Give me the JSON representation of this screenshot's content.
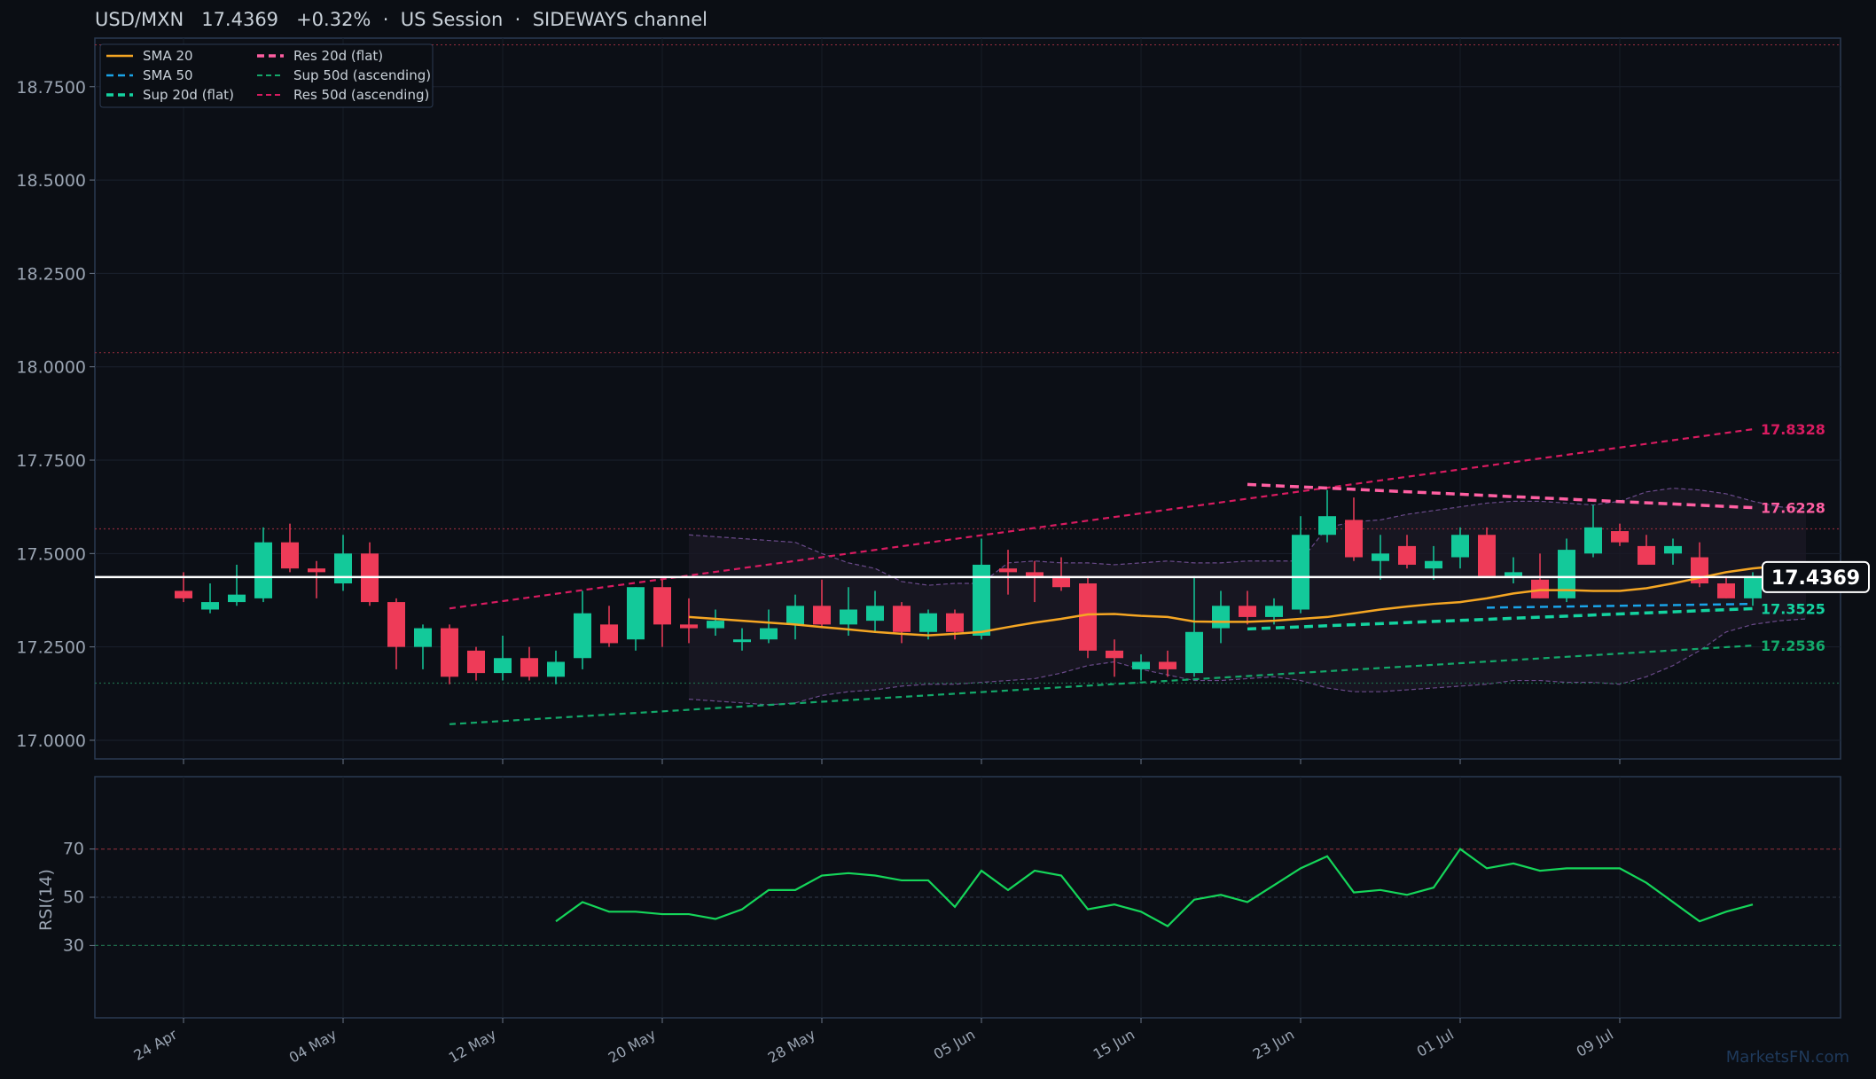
{
  "header": {
    "symbol": "USD/MXN",
    "price": "17.4369",
    "change": "+0.32%",
    "session": "US Session",
    "regime": "SIDEWAYS channel",
    "separator": "·"
  },
  "watermark": "MarketsFN.com",
  "colors": {
    "background": "#0b0e14",
    "up": "#13c99a",
    "down": "#ee3b58",
    "sma20": "#f5a623",
    "sma50": "#1aa3e8",
    "sup20": "#14d3a0",
    "res20": "#ff5fa2",
    "sup50": "#13a86a",
    "res50": "#d81b60",
    "rsi": "#15d65a"
  },
  "chart_data": [
    {
      "type": "candlestick",
      "ylim": [
        16.95,
        18.88
      ],
      "yticks": [
        "17.0000",
        "17.2500",
        "17.5000",
        "17.7500",
        "18.0000",
        "18.2500",
        "18.5000",
        "18.7500"
      ],
      "ytick_values": [
        17.0,
        17.25,
        17.5,
        17.75,
        18.0,
        18.25,
        18.5,
        18.75
      ],
      "xticks": [
        "24 Apr",
        "04 May",
        "12 May",
        "20 May",
        "28 May",
        "05 Jun",
        "15 Jun",
        "23 Jun",
        "01 Jul",
        "09 Jul"
      ],
      "xtick_index": [
        0,
        6,
        12,
        18,
        24,
        30,
        36,
        42,
        48,
        54
      ],
      "grid": true,
      "legend_position": "top-left",
      "legend": [
        "SMA 20",
        "SMA 50",
        "Sup 20d (flat)",
        "Res 20d (flat)",
        "Sup 50d (ascending)",
        "Res 50d (ascending)"
      ],
      "last_price_label": "17.4369",
      "last_price": 17.4369,
      "horizontal_levels": [
        18.862,
        18.038,
        17.566,
        17.153
      ],
      "level_labels": [
        {
          "text": "17.8328",
          "value": 17.8328,
          "series": "res50"
        },
        {
          "text": "17.6228",
          "value": 17.6228,
          "series": "res20"
        },
        {
          "text": "17.3525",
          "value": 17.3525,
          "series": "sup20"
        },
        {
          "text": "17.2536",
          "value": 17.2536,
          "series": "sup50"
        }
      ],
      "ohlc": [
        [
          17.4,
          17.45,
          17.37,
          17.38
        ],
        [
          17.35,
          17.42,
          17.34,
          17.37
        ],
        [
          17.37,
          17.47,
          17.36,
          17.39
        ],
        [
          17.38,
          17.57,
          17.37,
          17.53
        ],
        [
          17.53,
          17.58,
          17.45,
          17.46
        ],
        [
          17.46,
          17.48,
          17.38,
          17.45
        ],
        [
          17.42,
          17.55,
          17.4,
          17.5
        ],
        [
          17.5,
          17.53,
          17.36,
          17.37
        ],
        [
          17.37,
          17.38,
          17.19,
          17.25
        ],
        [
          17.25,
          17.31,
          17.19,
          17.3
        ],
        [
          17.3,
          17.31,
          17.15,
          17.17
        ],
        [
          17.24,
          17.25,
          17.16,
          17.18
        ],
        [
          17.18,
          17.28,
          17.16,
          17.22
        ],
        [
          17.22,
          17.25,
          17.16,
          17.17
        ],
        [
          17.17,
          17.24,
          17.15,
          17.21
        ],
        [
          17.22,
          17.4,
          17.19,
          17.34
        ],
        [
          17.31,
          17.36,
          17.25,
          17.26
        ],
        [
          17.27,
          17.41,
          17.24,
          17.41
        ],
        [
          17.41,
          17.43,
          17.25,
          17.31
        ],
        [
          17.31,
          17.38,
          17.26,
          17.3
        ],
        [
          17.3,
          17.35,
          17.28,
          17.32
        ],
        [
          17.27,
          17.3,
          17.24,
          17.27
        ],
        [
          17.27,
          17.35,
          17.26,
          17.3
        ],
        [
          17.31,
          17.39,
          17.27,
          17.36
        ],
        [
          17.36,
          17.43,
          17.3,
          17.31
        ],
        [
          17.31,
          17.41,
          17.28,
          17.35
        ],
        [
          17.32,
          17.4,
          17.29,
          17.36
        ],
        [
          17.36,
          17.37,
          17.26,
          17.29
        ],
        [
          17.29,
          17.35,
          17.27,
          17.34
        ],
        [
          17.34,
          17.35,
          17.27,
          17.29
        ],
        [
          17.28,
          17.54,
          17.27,
          17.47
        ],
        [
          17.46,
          17.51,
          17.39,
          17.45
        ],
        [
          17.45,
          17.48,
          17.37,
          17.44
        ],
        [
          17.44,
          17.49,
          17.4,
          17.41
        ],
        [
          17.42,
          17.44,
          17.22,
          17.24
        ],
        [
          17.24,
          17.27,
          17.17,
          17.22
        ],
        [
          17.19,
          17.23,
          17.16,
          17.21
        ],
        [
          17.21,
          17.24,
          17.17,
          17.19
        ],
        [
          17.18,
          17.44,
          17.17,
          17.29
        ],
        [
          17.3,
          17.4,
          17.26,
          17.36
        ],
        [
          17.36,
          17.4,
          17.31,
          17.33
        ],
        [
          17.33,
          17.38,
          17.31,
          17.36
        ],
        [
          17.35,
          17.6,
          17.34,
          17.55
        ],
        [
          17.55,
          17.67,
          17.53,
          17.6
        ],
        [
          17.59,
          17.65,
          17.48,
          17.49
        ],
        [
          17.48,
          17.55,
          17.43,
          17.5
        ],
        [
          17.52,
          17.55,
          17.46,
          17.47
        ],
        [
          17.46,
          17.52,
          17.43,
          17.48
        ],
        [
          17.49,
          17.57,
          17.46,
          17.55
        ],
        [
          17.55,
          17.57,
          17.44,
          17.44
        ],
        [
          17.44,
          17.49,
          17.42,
          17.45
        ],
        [
          17.43,
          17.5,
          17.38,
          17.38
        ],
        [
          17.38,
          17.54,
          17.37,
          17.51
        ],
        [
          17.5,
          17.63,
          17.49,
          17.57
        ],
        [
          17.56,
          17.58,
          17.52,
          17.53
        ],
        [
          17.52,
          17.55,
          17.47,
          17.47
        ],
        [
          17.5,
          17.54,
          17.47,
          17.52
        ],
        [
          17.49,
          17.53,
          17.41,
          17.42
        ],
        [
          17.42,
          17.44,
          17.38,
          17.38
        ],
        [
          17.38,
          17.45,
          17.36,
          17.44
        ]
      ],
      "sma20": {
        "start": 19,
        "values": [
          17.33,
          17.325,
          17.32,
          17.315,
          17.31,
          17.303,
          17.297,
          17.29,
          17.285,
          17.281,
          17.285,
          17.29,
          17.303,
          17.315,
          17.325,
          17.337,
          17.338,
          17.333,
          17.33,
          17.318,
          17.317,
          17.317,
          17.32,
          17.325,
          17.33,
          17.34,
          17.35,
          17.358,
          17.365,
          17.37,
          17.38,
          17.393,
          17.402,
          17.402,
          17.4,
          17.4,
          17.407,
          17.42,
          17.435,
          17.45,
          17.46,
          17.467,
          17.472
        ]
      },
      "sma50": {
        "start": 49,
        "values": [
          17.355,
          17.356,
          17.357,
          17.358,
          17.359,
          17.36,
          17.361,
          17.362,
          17.363,
          17.364,
          17.365
        ]
      },
      "sup20": {
        "start": 40,
        "end": 59,
        "from": 17.298,
        "to": 17.3525
      },
      "res20": {
        "start": 40,
        "end": 59,
        "from": 17.685,
        "to": 17.6228
      },
      "sup50": {
        "start": 10,
        "end": 59,
        "from": 17.043,
        "to": 17.2536
      },
      "res50": {
        "start": 10,
        "end": 59,
        "from": 17.353,
        "to": 17.8328
      },
      "channel_band": {
        "start": 19,
        "upper": [
          17.55,
          17.545,
          17.54,
          17.535,
          17.53,
          17.5,
          17.475,
          17.46,
          17.425,
          17.415,
          17.42,
          17.42,
          17.475,
          17.48,
          17.475,
          17.475,
          17.47,
          17.475,
          17.48,
          17.475,
          17.475,
          17.48,
          17.48,
          17.48,
          17.57,
          17.585,
          17.59,
          17.605,
          17.615,
          17.625,
          17.635,
          17.64,
          17.64,
          17.635,
          17.63,
          17.64,
          17.665,
          17.675,
          17.67,
          17.66,
          17.64,
          17.625,
          17.62
        ],
        "lower": [
          17.11,
          17.105,
          17.1,
          17.095,
          17.1,
          17.12,
          17.13,
          17.135,
          17.145,
          17.15,
          17.15,
          17.155,
          17.16,
          17.165,
          17.18,
          17.2,
          17.21,
          17.19,
          17.175,
          17.16,
          17.16,
          17.165,
          17.17,
          17.16,
          17.14,
          17.13,
          17.13,
          17.135,
          17.14,
          17.145,
          17.15,
          17.16,
          17.16,
          17.155,
          17.155,
          17.15,
          17.17,
          17.2,
          17.24,
          17.29,
          17.31,
          17.32,
          17.325
        ]
      }
    },
    {
      "type": "line",
      "ylabel": "RSI(14)",
      "ylim": [
        0,
        100
      ],
      "yticks": [
        "30",
        "50",
        "70"
      ],
      "ytick_values": [
        30,
        50,
        70
      ],
      "start": 14,
      "values": [
        40,
        48,
        44,
        44,
        43,
        43,
        41,
        45,
        53,
        53,
        59,
        60,
        59,
        57,
        57,
        46,
        61,
        53,
        61,
        59,
        45,
        47,
        44,
        38,
        49,
        51,
        48,
        55,
        62,
        67,
        52,
        53,
        51,
        54,
        70,
        62,
        64,
        61,
        62,
        62,
        62,
        56,
        48,
        40,
        44,
        47
      ]
    }
  ]
}
